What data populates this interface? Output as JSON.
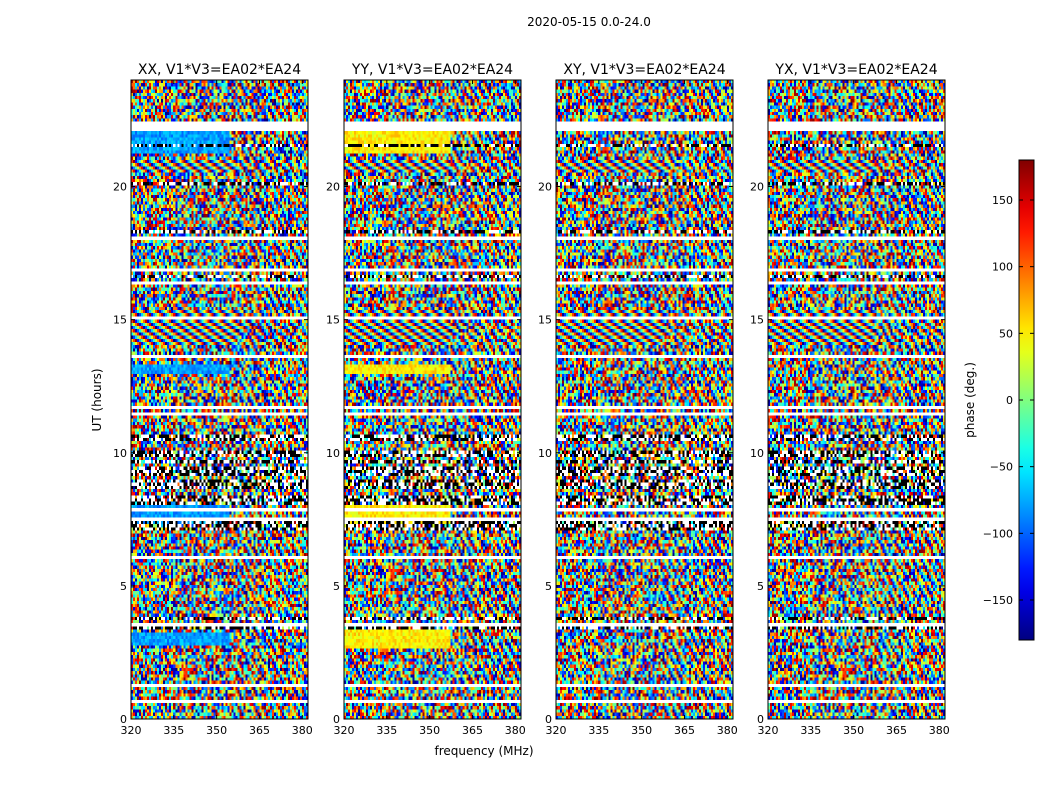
{
  "chart_data": {
    "type": "heatmap",
    "title": "2020-05-15 0.0-24.0",
    "xlabel": "frequency (MHz)",
    "ylabel": "UT (hours)",
    "xlim": [
      320,
      382
    ],
    "ylim": [
      0,
      24
    ],
    "xticks": [
      320,
      335,
      350,
      365,
      380
    ],
    "yticks": [
      0,
      5,
      10,
      15,
      20
    ],
    "panels": [
      {
        "title": "XX, V1*V3=EA02*EA24",
        "pol": "XX"
      },
      {
        "title": "YY, V1*V3=EA02*EA24",
        "pol": "YY"
      },
      {
        "title": "XY, V1*V3=EA02*EA24",
        "pol": "XY"
      },
      {
        "title": "YX, V1*V3=EA02*EA24",
        "pol": "YX"
      }
    ],
    "colorbar": {
      "label": "phase (deg.)",
      "colormap": "jet",
      "range": [
        -180,
        180
      ],
      "ticks": [
        150,
        100,
        50,
        0,
        -50,
        -100,
        -150
      ],
      "tick_labels": [
        "150",
        "100",
        "50",
        "0",
        "−50",
        "−100",
        "−150"
      ]
    }
  }
}
